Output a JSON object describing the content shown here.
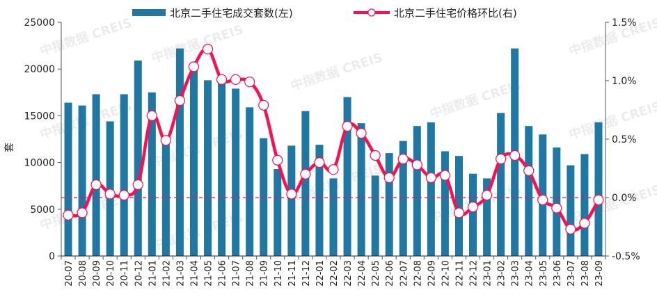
{
  "chart_data": {
    "type": "bar+line",
    "categories": [
      "20-07",
      "20-08",
      "20-09",
      "20-10",
      "20-11",
      "20-12",
      "21-01",
      "21-02",
      "21-03",
      "21-04",
      "21-05",
      "21-06",
      "21-07",
      "21-08",
      "21-09",
      "21-10",
      "21-11",
      "21-12",
      "22-01",
      "22-02",
      "22-03",
      "22-04",
      "22-05",
      "22-06",
      "22-07",
      "22-08",
      "22-09",
      "22-10",
      "22-11",
      "22-12",
      "23-01",
      "23-02",
      "23-03",
      "23-04",
      "23-05",
      "23-06",
      "23-07",
      "23-08",
      "23-09"
    ],
    "series": [
      {
        "name": "北京二手住宅成交套数(左)",
        "type": "bar",
        "axis": "left",
        "color": "#1f77a4",
        "values": [
          16400,
          16100,
          17300,
          14400,
          17300,
          20900,
          17500,
          12100,
          22200,
          19900,
          18800,
          18600,
          17900,
          15900,
          12600,
          9300,
          11800,
          15500,
          11900,
          8300,
          17000,
          14200,
          8600,
          11000,
          12300,
          13900,
          14300,
          11200,
          10700,
          8800,
          8300,
          15300,
          22200,
          13900,
          13000,
          11600,
          9700,
          10900,
          14300
        ]
      },
      {
        "name": "北京二手住宅价格环比(右)",
        "type": "line",
        "axis": "right",
        "color": "#ff0d4f",
        "values": [
          -0.15,
          -0.13,
          0.11,
          0.03,
          0.02,
          0.11,
          0.7,
          0.49,
          0.83,
          1.12,
          1.27,
          1.01,
          1.01,
          0.99,
          0.79,
          0.32,
          0.03,
          0.2,
          0.3,
          0.24,
          0.61,
          0.55,
          0.36,
          0.17,
          0.33,
          0.28,
          0.17,
          0.19,
          -0.13,
          -0.08,
          0.02,
          0.33,
          0.36,
          0.23,
          -0.02,
          -0.09,
          -0.27,
          -0.22,
          -0.02
        ]
      }
    ],
    "ylabel": "套",
    "ylim": [
      0,
      25000
    ],
    "yticks": [
      "0",
      "5000",
      "10000",
      "15000",
      "20000",
      "25000"
    ],
    "y2lim": [
      -0.5,
      1.5
    ],
    "y2ticks": [
      "-0.5%",
      "0.0%",
      "0.5%",
      "1.0%",
      "1.5%"
    ],
    "reference_line": {
      "axis": "right",
      "value": 0,
      "style": "dashed",
      "color": "#ff0d4f"
    },
    "grid": false,
    "legend": "top"
  },
  "watermark": "中指数据 CREIS"
}
